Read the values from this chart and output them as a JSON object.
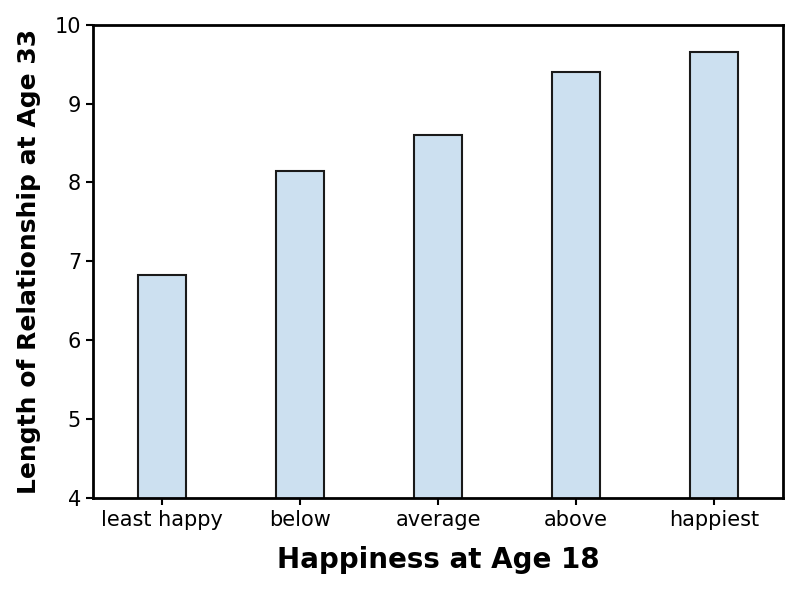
{
  "categories": [
    "least happy",
    "below",
    "average",
    "above",
    "happiest"
  ],
  "values": [
    6.83,
    8.15,
    8.6,
    9.4,
    9.65
  ],
  "bar_color": "#cce0f0",
  "bar_edge_color": "#1a1a1a",
  "bar_edge_width": 1.5,
  "xlabel": "Happiness at Age 18",
  "ylabel": "Length of Relationship at Age 33",
  "ylim": [
    4,
    10
  ],
  "yticks": [
    4,
    5,
    6,
    7,
    8,
    9,
    10
  ],
  "xlabel_fontsize": 20,
  "ylabel_fontsize": 18,
  "tick_fontsize": 15,
  "xlabel_fontweight": "bold",
  "ylabel_fontweight": "bold",
  "bar_width": 0.35,
  "background_color": "#ffffff",
  "spine_linewidth": 2.0
}
